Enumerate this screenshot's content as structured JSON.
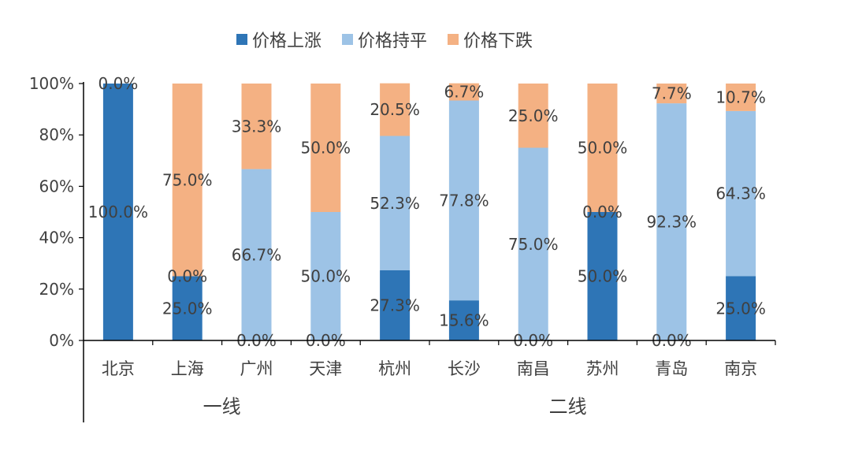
{
  "chart_data": {
    "type": "bar",
    "stacked": true,
    "percent": true,
    "categories": [
      "北京",
      "上海",
      "广州",
      "天津",
      "杭州",
      "长沙",
      "南昌",
      "苏州",
      "青岛",
      "南京"
    ],
    "groups": [
      {
        "label": "一线",
        "categories": [
          "北京",
          "上海",
          "广州",
          "天津"
        ]
      },
      {
        "label": "二线",
        "categories": [
          "杭州",
          "长沙",
          "南昌",
          "苏州",
          "青岛",
          "南京"
        ]
      }
    ],
    "series": [
      {
        "name": "价格上涨",
        "color": "#2E75B6",
        "values": [
          100.0,
          25.0,
          0.0,
          0.0,
          27.3,
          15.6,
          0.0,
          50.0,
          0.0,
          25.0
        ],
        "labels": [
          "100.0%",
          "25.0%",
          "0.0%",
          "0.0%",
          "27.3%",
          "15.6%",
          "0.0%",
          "50.0%",
          "0.0%",
          "25.0%"
        ]
      },
      {
        "name": "价格持平",
        "color": "#9DC3E6",
        "values": [
          0.0,
          0.0,
          66.7,
          50.0,
          52.3,
          77.8,
          75.0,
          0.0,
          92.3,
          64.3
        ],
        "labels": [
          "",
          "0.0%",
          "66.7%",
          "50.0%",
          "52.3%",
          "77.8%",
          "75.0%",
          "0.0%",
          "92.3%",
          "64.3%"
        ]
      },
      {
        "name": "价格下跌",
        "color": "#F4B183",
        "values": [
          0.0,
          75.0,
          33.3,
          50.0,
          20.5,
          6.7,
          25.0,
          50.0,
          7.7,
          10.7
        ],
        "labels": [
          "0.0%",
          "75.0%",
          "33.3%",
          "50.0%",
          "20.5%",
          "6.7%",
          "25.0%",
          "50.0%",
          "7.7%",
          "10.7%"
        ]
      }
    ],
    "yticks": [
      "0%",
      "20%",
      "40%",
      "60%",
      "80%",
      "100%"
    ],
    "ylim": [
      0,
      100
    ],
    "legend_position": "top",
    "grid": false
  }
}
